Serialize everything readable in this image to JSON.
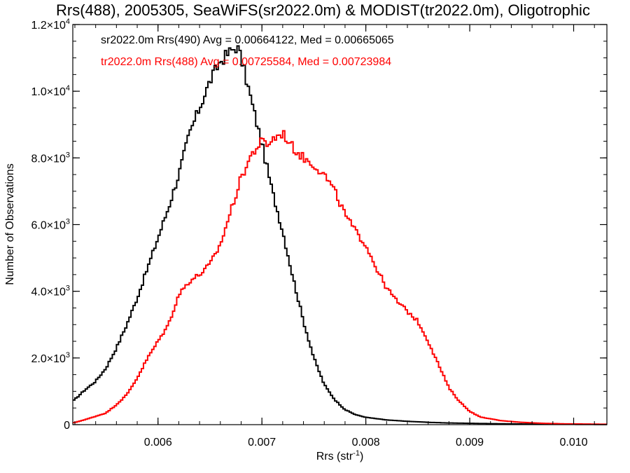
{
  "chart_data": {
    "type": "histogram",
    "title": "Rrs(488), 2005305, SeaWiFS(sr2022.0m) & MODIST(tr2022.0m), Oligotrophic",
    "xlabel": {
      "base": "Rrs (str",
      "exponent": "-1",
      "close": ")"
    },
    "ylabel": "Number of Observations",
    "xlim": [
      0.00518,
      0.01032
    ],
    "ylim": [
      0,
      12000
    ],
    "grid": false,
    "legend_placement": "top-left",
    "x_ticks": [
      {
        "value": 0.006,
        "label": "0.006"
      },
      {
        "value": 0.007,
        "label": "0.007"
      },
      {
        "value": 0.008,
        "label": "0.008"
      },
      {
        "value": 0.009,
        "label": "0.009"
      },
      {
        "value": 0.01,
        "label": "0.010"
      }
    ],
    "x_minor_step": 0.0002,
    "y_ticks": [
      {
        "value": 0,
        "mantissa": "0",
        "exponent": ""
      },
      {
        "value": 2000,
        "mantissa": "2.0×10",
        "exponent": "3"
      },
      {
        "value": 4000,
        "mantissa": "4.0×10",
        "exponent": "3"
      },
      {
        "value": 6000,
        "mantissa": "6.0×10",
        "exponent": "3"
      },
      {
        "value": 8000,
        "mantissa": "8.0×10",
        "exponent": "3"
      },
      {
        "value": 10000,
        "mantissa": "1.0×10",
        "exponent": "4"
      },
      {
        "value": 12000,
        "mantissa": "1.2×10",
        "exponent": "4"
      }
    ],
    "y_minor_step": 500,
    "bin_width": 2e-05,
    "series": [
      {
        "name": "sr2022.0m Rrs(490)",
        "legend": "sr2022.0m Rrs(490) Avg = 0.00664122, Med = 0.00665065",
        "avg": 0.00664122,
        "median": 0.00665065,
        "color": "#000000",
        "points": [
          [
            0.00518,
            700
          ],
          [
            0.0053,
            1050
          ],
          [
            0.0054,
            1300
          ],
          [
            0.0055,
            1700
          ],
          [
            0.0056,
            2300
          ],
          [
            0.0057,
            3000
          ],
          [
            0.0058,
            3800
          ],
          [
            0.0059,
            4700
          ],
          [
            0.006,
            5600
          ],
          [
            0.0061,
            6500
          ],
          [
            0.0062,
            7500
          ],
          [
            0.0063,
            8700
          ],
          [
            0.0064,
            9500
          ],
          [
            0.0065,
            10300
          ],
          [
            0.0066,
            10900
          ],
          [
            0.0067,
            11200
          ],
          [
            0.00676,
            11350
          ],
          [
            0.0068,
            11000
          ],
          [
            0.0069,
            9700
          ],
          [
            0.007,
            8400
          ],
          [
            0.0071,
            7000
          ],
          [
            0.0072,
            5800
          ],
          [
            0.0073,
            4400
          ],
          [
            0.0074,
            3100
          ],
          [
            0.0075,
            2000
          ],
          [
            0.0076,
            1200
          ],
          [
            0.0077,
            750
          ],
          [
            0.0078,
            450
          ],
          [
            0.0079,
            300
          ],
          [
            0.008,
            220
          ],
          [
            0.0082,
            140
          ],
          [
            0.0084,
            100
          ],
          [
            0.0086,
            70
          ],
          [
            0.0088,
            50
          ],
          [
            0.009,
            40
          ],
          [
            0.0092,
            30
          ],
          [
            0.0095,
            20
          ],
          [
            0.0098,
            12
          ],
          [
            0.01032,
            5
          ]
        ]
      },
      {
        "name": "tr2022.0m Rrs(488)",
        "legend": "tr2022.0m Rrs(488) Avg = 0.00725584, Med = 0.00723984",
        "avg": 0.00725584,
        "median": 0.00723984,
        "color": "#ff0000",
        "points": [
          [
            0.00518,
            50
          ],
          [
            0.0053,
            150
          ],
          [
            0.0054,
            250
          ],
          [
            0.0055,
            350
          ],
          [
            0.0056,
            600
          ],
          [
            0.0057,
            900
          ],
          [
            0.0058,
            1400
          ],
          [
            0.0059,
            2000
          ],
          [
            0.006,
            2500
          ],
          [
            0.0061,
            3000
          ],
          [
            0.0062,
            3900
          ],
          [
            0.0063,
            4300
          ],
          [
            0.0064,
            4500
          ],
          [
            0.0065,
            4800
          ],
          [
            0.0066,
            5400
          ],
          [
            0.0067,
            6400
          ],
          [
            0.0068,
            7400
          ],
          [
            0.0069,
            8100
          ],
          [
            0.007,
            8500
          ],
          [
            0.00705,
            8400
          ],
          [
            0.0071,
            8550
          ],
          [
            0.0072,
            8750
          ],
          [
            0.0073,
            8300
          ],
          [
            0.0074,
            8000
          ],
          [
            0.0075,
            7800
          ],
          [
            0.0076,
            7500
          ],
          [
            0.0077,
            7000
          ],
          [
            0.0078,
            6300
          ],
          [
            0.0079,
            5800
          ],
          [
            0.008,
            5400
          ],
          [
            0.0081,
            4700
          ],
          [
            0.0082,
            4100
          ],
          [
            0.0083,
            3700
          ],
          [
            0.0084,
            3400
          ],
          [
            0.0085,
            3100
          ],
          [
            0.0086,
            2500
          ],
          [
            0.0087,
            1800
          ],
          [
            0.0088,
            1100
          ],
          [
            0.0089,
            700
          ],
          [
            0.009,
            400
          ],
          [
            0.0091,
            230
          ],
          [
            0.0093,
            120
          ],
          [
            0.0095,
            70
          ],
          [
            0.0097,
            40
          ],
          [
            0.0099,
            25
          ],
          [
            0.01032,
            12
          ]
        ]
      }
    ]
  }
}
